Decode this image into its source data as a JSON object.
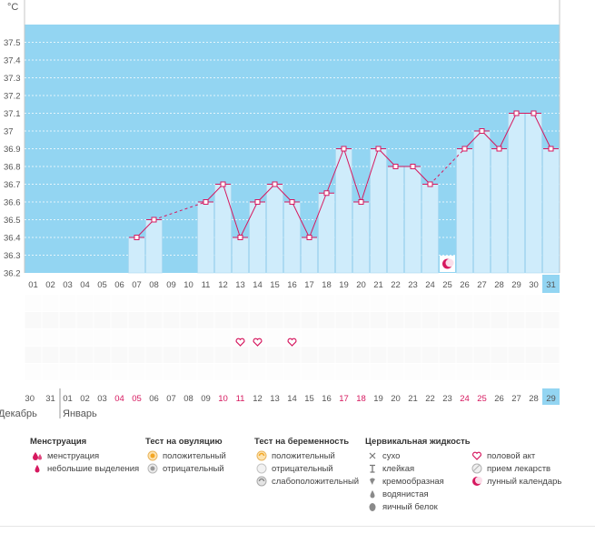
{
  "chart_data": {
    "type": "bar",
    "unit": "°C",
    "ylim": [
      36.2,
      37.6
    ],
    "y_ticks": [
      "36.2",
      "36.3",
      "36.4",
      "36.5",
      "36.6",
      "36.7",
      "36.8",
      "36.9",
      "37",
      "37.1",
      "37.2",
      "37.3",
      "37.4",
      "37.5"
    ],
    "categories": [
      "01",
      "02",
      "03",
      "04",
      "05",
      "06",
      "07",
      "08",
      "09",
      "10",
      "11",
      "12",
      "13",
      "14",
      "15",
      "16",
      "17",
      "18",
      "19",
      "20",
      "21",
      "22",
      "23",
      "24",
      "25",
      "26",
      "27",
      "28",
      "29",
      "30",
      "31"
    ],
    "values": [
      null,
      null,
      null,
      null,
      null,
      null,
      36.4,
      36.5,
      null,
      null,
      36.6,
      36.7,
      36.4,
      36.6,
      36.7,
      36.6,
      36.4,
      36.65,
      36.9,
      36.6,
      36.9,
      36.8,
      36.8,
      36.7,
      null,
      36.9,
      37.0,
      36.9,
      37.1,
      37.1,
      36.9
    ],
    "cycle_days": [
      "30",
      "31",
      "01",
      "02",
      "03",
      "04",
      "05",
      "06",
      "07",
      "08",
      "09",
      "10",
      "11",
      "12",
      "13",
      "14",
      "15",
      "16",
      "17",
      "18",
      "19",
      "20",
      "21",
      "22",
      "23",
      "24",
      "25",
      "26",
      "27",
      "28",
      "29"
    ],
    "cycle_days_red": [
      5,
      6,
      11,
      12,
      18,
      19,
      25,
      26
    ],
    "highlighted_index": 30,
    "months": [
      "Декабрь",
      "Январь"
    ],
    "intercourse_days": [
      "13",
      "14",
      "16"
    ],
    "moon_day": "25"
  },
  "legend": {
    "menstruation": {
      "title": "Менструация",
      "items": [
        "менструация",
        "небольшие выделения"
      ]
    },
    "ovulation": {
      "title": "Тест на овуляцию",
      "items": [
        "положительный",
        "отрицательный"
      ]
    },
    "pregnancy": {
      "title": "Тест на беременность",
      "items": [
        "положительный",
        "отрицательный",
        "слабоположительный"
      ]
    },
    "cervical": {
      "title": "Цервикальная жидкость",
      "items": [
        "сухо",
        "клейкая",
        "кремообразная",
        "водянистая",
        "яичный белок"
      ]
    },
    "other": {
      "items": [
        "половой акт",
        "прием лекарств",
        "лунный календарь"
      ]
    }
  },
  "colors": {
    "sky": "#93d5f2",
    "bar": "#cfecfb",
    "bar_border": "#a9d8f0",
    "line": "#d6185f",
    "red": "#d6185f"
  }
}
